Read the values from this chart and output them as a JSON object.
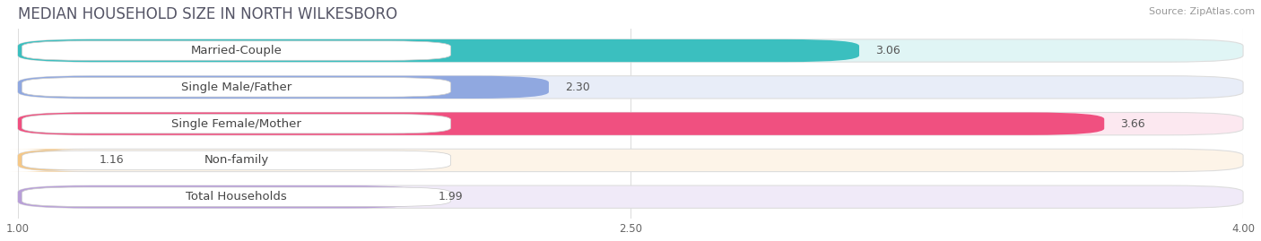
{
  "title": "MEDIAN HOUSEHOLD SIZE IN NORTH WILKESBORO",
  "source": "Source: ZipAtlas.com",
  "categories": [
    "Married-Couple",
    "Single Male/Father",
    "Single Female/Mother",
    "Non-family",
    "Total Households"
  ],
  "values": [
    3.06,
    2.3,
    3.66,
    1.16,
    1.99
  ],
  "bar_colors": [
    "#3bbfbf",
    "#90a8e0",
    "#f05080",
    "#f5c888",
    "#b89fd8"
  ],
  "bar_bg_colors": [
    "#e0f5f5",
    "#e8edf8",
    "#fce8f0",
    "#fdf4e8",
    "#f0eaf8"
  ],
  "label_bg_color": "#ffffff",
  "xlim": [
    1.0,
    4.0
  ],
  "xticks": [
    1.0,
    2.5,
    4.0
  ],
  "bar_height": 0.62,
  "label_fontsize": 9.5,
  "value_fontsize": 9,
  "title_fontsize": 12,
  "source_fontsize": 8,
  "background_color": "#ffffff",
  "title_color": "#555566",
  "label_text_color": "#444444",
  "value_text_color": "#555555"
}
